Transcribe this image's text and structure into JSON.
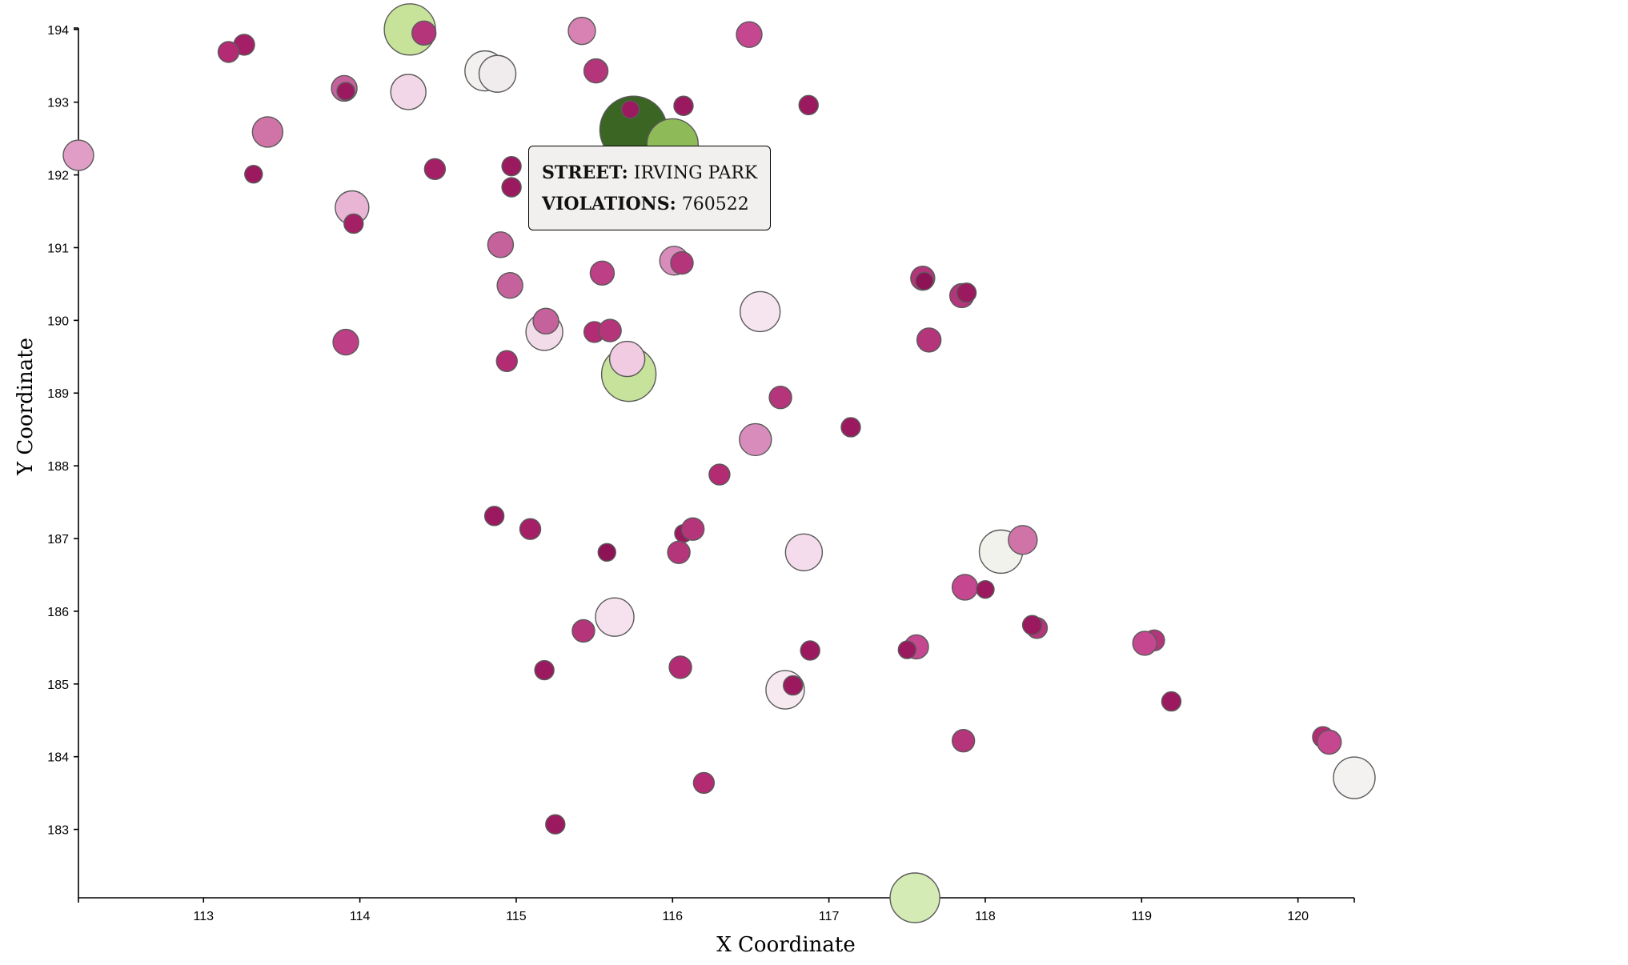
{
  "chart_data": {
    "type": "scatter",
    "xlabel": "X Coordinate",
    "ylabel": "Y Coordinate",
    "xlim": [
      112.2,
      120.36
    ],
    "ylim": [
      182.06,
      194.02
    ],
    "x_ticks": [
      113,
      114,
      115,
      116,
      117,
      118,
      119,
      120
    ],
    "y_ticks": [
      183,
      184,
      185,
      186,
      187,
      188,
      189,
      190,
      191,
      192,
      193,
      194
    ],
    "color_scale": {
      "high": "#3b6522",
      "mid": "#f2f2ef",
      "low": "#8e1356"
    },
    "points": [
      {
        "x": 114.32,
        "y": 194.0,
        "size": 32,
        "color": "#c7e39a"
      },
      {
        "x": 114.41,
        "y": 193.95,
        "size": 15,
        "color": "#b5357b"
      },
      {
        "x": 113.26,
        "y": 193.79,
        "size": 13,
        "color": "#a51f67"
      },
      {
        "x": 113.16,
        "y": 193.69,
        "size": 13,
        "color": "#b32b73"
      },
      {
        "x": 115.42,
        "y": 193.98,
        "size": 17,
        "color": "#d782b2"
      },
      {
        "x": 116.49,
        "y": 193.93,
        "size": 16,
        "color": "#c54790"
      },
      {
        "x": 114.8,
        "y": 193.43,
        "size": 25,
        "color": "#f3f0f0"
      },
      {
        "x": 114.88,
        "y": 193.39,
        "size": 23,
        "color": "#f0ecee"
      },
      {
        "x": 115.51,
        "y": 193.43,
        "size": 15,
        "color": "#b5357b"
      },
      {
        "x": 113.9,
        "y": 193.19,
        "size": 16,
        "color": "#c5619b"
      },
      {
        "x": 113.91,
        "y": 193.15,
        "size": 11,
        "color": "#9b1a5f"
      },
      {
        "x": 114.31,
        "y": 193.14,
        "size": 22,
        "color": "#f2d7e8"
      },
      {
        "x": 116.07,
        "y": 192.95,
        "size": 12,
        "color": "#9b1a5f"
      },
      {
        "x": 116.87,
        "y": 192.96,
        "size": 12,
        "color": "#9b1a5f"
      },
      {
        "x": 115.75,
        "y": 192.62,
        "size": 42,
        "color": "#3b6522"
      },
      {
        "x": 116.0,
        "y": 192.42,
        "size": 32,
        "color": "#8ebb58"
      },
      {
        "x": 115.73,
        "y": 192.9,
        "size": 11,
        "color": "#9b1a5f"
      },
      {
        "x": 113.41,
        "y": 192.59,
        "size": 19,
        "color": "#d073a7"
      },
      {
        "x": 112.2,
        "y": 192.27,
        "size": 19,
        "color": "#e09ec6"
      },
      {
        "x": 114.48,
        "y": 192.08,
        "size": 13,
        "color": "#a51f67"
      },
      {
        "x": 114.97,
        "y": 192.12,
        "size": 12,
        "color": "#9b1a5f"
      },
      {
        "x": 113.32,
        "y": 192.01,
        "size": 11,
        "color": "#9b1a5f"
      },
      {
        "x": 114.97,
        "y": 191.83,
        "size": 12,
        "color": "#9b1a5f"
      },
      {
        "x": 113.95,
        "y": 191.55,
        "size": 21,
        "color": "#e8b5d5"
      },
      {
        "x": 113.96,
        "y": 191.33,
        "size": 12,
        "color": "#a51f67"
      },
      {
        "x": 114.9,
        "y": 191.04,
        "size": 16,
        "color": "#c5619b"
      },
      {
        "x": 116.01,
        "y": 190.82,
        "size": 18,
        "color": "#d88cbb"
      },
      {
        "x": 116.06,
        "y": 190.79,
        "size": 14,
        "color": "#b5357b"
      },
      {
        "x": 115.55,
        "y": 190.65,
        "size": 15,
        "color": "#bd3f86"
      },
      {
        "x": 114.96,
        "y": 190.48,
        "size": 16,
        "color": "#c5619b"
      },
      {
        "x": 117.6,
        "y": 190.58,
        "size": 15,
        "color": "#b5357b"
      },
      {
        "x": 117.61,
        "y": 190.54,
        "size": 11,
        "color": "#8e1356"
      },
      {
        "x": 116.56,
        "y": 190.12,
        "size": 25,
        "color": "#f6e4ef"
      },
      {
        "x": 117.85,
        "y": 190.34,
        "size": 15,
        "color": "#b5357b"
      },
      {
        "x": 117.88,
        "y": 190.38,
        "size": 12,
        "color": "#9b1a5f"
      },
      {
        "x": 115.18,
        "y": 189.84,
        "size": 23,
        "color": "#f3dcea"
      },
      {
        "x": 115.19,
        "y": 189.99,
        "size": 16,
        "color": "#c5619b"
      },
      {
        "x": 115.5,
        "y": 189.84,
        "size": 13,
        "color": "#b32b73"
      },
      {
        "x": 115.6,
        "y": 189.86,
        "size": 14,
        "color": "#b5357b"
      },
      {
        "x": 117.64,
        "y": 189.73,
        "size": 15,
        "color": "#b5357b"
      },
      {
        "x": 113.91,
        "y": 189.7,
        "size": 16,
        "color": "#bd3f86"
      },
      {
        "x": 114.94,
        "y": 189.44,
        "size": 13,
        "color": "#b32b73"
      },
      {
        "x": 115.72,
        "y": 189.26,
        "size": 34,
        "color": "#c6e29b"
      },
      {
        "x": 115.71,
        "y": 189.47,
        "size": 22,
        "color": "#f0cbe1"
      },
      {
        "x": 116.69,
        "y": 188.94,
        "size": 14,
        "color": "#b5357b"
      },
      {
        "x": 117.14,
        "y": 188.53,
        "size": 12,
        "color": "#9b1a5f"
      },
      {
        "x": 116.53,
        "y": 188.36,
        "size": 20,
        "color": "#d88cbb"
      },
      {
        "x": 116.3,
        "y": 187.88,
        "size": 13,
        "color": "#b32b73"
      },
      {
        "x": 114.86,
        "y": 187.31,
        "size": 12,
        "color": "#9b1a5f"
      },
      {
        "x": 115.09,
        "y": 187.13,
        "size": 13,
        "color": "#a51f67"
      },
      {
        "x": 116.07,
        "y": 187.07,
        "size": 11,
        "color": "#9b1a5f"
      },
      {
        "x": 116.13,
        "y": 187.13,
        "size": 14,
        "color": "#b5357b"
      },
      {
        "x": 116.88,
        "y": 186.89,
        "size": 11,
        "color": "#9b1a5f"
      },
      {
        "x": 116.84,
        "y": 186.81,
        "size": 23,
        "color": "#f4dcec"
      },
      {
        "x": 118.1,
        "y": 186.82,
        "size": 27,
        "color": "#f1f2ec"
      },
      {
        "x": 118.24,
        "y": 186.98,
        "size": 18,
        "color": "#d073a7"
      },
      {
        "x": 115.58,
        "y": 186.81,
        "size": 11,
        "color": "#8e1356"
      },
      {
        "x": 116.04,
        "y": 186.81,
        "size": 14,
        "color": "#b5357b"
      },
      {
        "x": 117.87,
        "y": 186.33,
        "size": 16,
        "color": "#c54790"
      },
      {
        "x": 118.0,
        "y": 186.3,
        "size": 11,
        "color": "#9b1a5f"
      },
      {
        "x": 115.63,
        "y": 185.92,
        "size": 24,
        "color": "#f6e2ee"
      },
      {
        "x": 115.43,
        "y": 185.73,
        "size": 14,
        "color": "#b5357b"
      },
      {
        "x": 118.33,
        "y": 185.77,
        "size": 13,
        "color": "#b5357b"
      },
      {
        "x": 118.3,
        "y": 185.81,
        "size": 12,
        "color": "#9b1a5f"
      },
      {
        "x": 119.08,
        "y": 185.6,
        "size": 13,
        "color": "#b5357b"
      },
      {
        "x": 119.02,
        "y": 185.56,
        "size": 15,
        "color": "#c54790"
      },
      {
        "x": 117.56,
        "y": 185.51,
        "size": 15,
        "color": "#c54790"
      },
      {
        "x": 117.5,
        "y": 185.47,
        "size": 11,
        "color": "#9b1a5f"
      },
      {
        "x": 116.88,
        "y": 185.46,
        "size": 12,
        "color": "#9b1a5f"
      },
      {
        "x": 115.18,
        "y": 185.19,
        "size": 12,
        "color": "#9b1a5f"
      },
      {
        "x": 116.05,
        "y": 185.23,
        "size": 14,
        "color": "#b32b73"
      },
      {
        "x": 116.72,
        "y": 184.92,
        "size": 24,
        "color": "#f6eaf0"
      },
      {
        "x": 116.77,
        "y": 184.98,
        "size": 12,
        "color": "#9b1a5f"
      },
      {
        "x": 119.19,
        "y": 184.76,
        "size": 12,
        "color": "#9b1a5f"
      },
      {
        "x": 120.16,
        "y": 184.27,
        "size": 13,
        "color": "#b32b73"
      },
      {
        "x": 120.2,
        "y": 184.2,
        "size": 15,
        "color": "#c54790"
      },
      {
        "x": 117.86,
        "y": 184.22,
        "size": 14,
        "color": "#b5357b"
      },
      {
        "x": 120.36,
        "y": 183.71,
        "size": 26,
        "color": "#f4f1f1"
      },
      {
        "x": 116.2,
        "y": 183.64,
        "size": 13,
        "color": "#b32b73"
      },
      {
        "x": 115.25,
        "y": 183.07,
        "size": 12,
        "color": "#9b1a5f"
      },
      {
        "x": 117.55,
        "y": 182.06,
        "size": 31,
        "color": "#d5ebb5"
      }
    ]
  },
  "tooltip": {
    "street_label": "STREET:",
    "street_value": "IRVING PARK",
    "violations_label": "VIOLATIONS:",
    "violations_value": "760522"
  }
}
